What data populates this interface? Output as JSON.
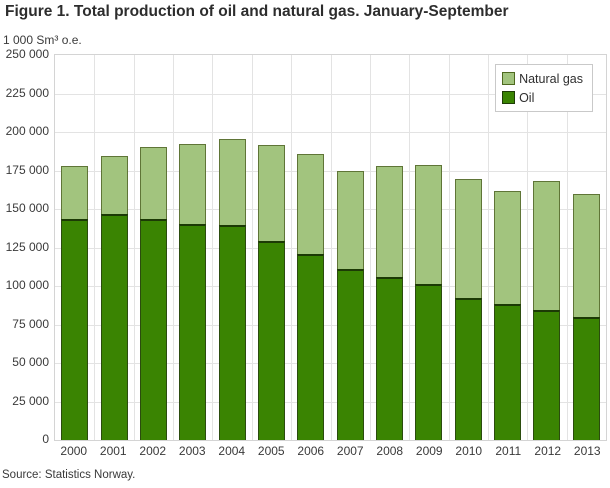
{
  "title": "Figure 1. Total production of oil and natural gas. January-September",
  "unit_label": "1 000 Sm³ o.e.",
  "source": "Source: Statistics Norway.",
  "legend": [
    {
      "label": "Natural gas",
      "color": "#a2c47e"
    },
    {
      "label": "Oil",
      "color": "#3a8402"
    }
  ],
  "colors": {
    "natural_gas_fill": "#a2c47e",
    "natural_gas_border": "#5f7537",
    "oil_fill": "#3a8402",
    "oil_border": "#2b4c0e",
    "gridline": "#e3e3e3",
    "plot_border": "#d4d4d4",
    "text": "#3a3a3a"
  },
  "chart_data": {
    "type": "bar",
    "stacked": true,
    "title": "Figure 1. Total production of oil and natural gas. January-September",
    "ylabel": "1 000 Sm³ o.e.",
    "xlabel": "",
    "ylim": [
      0,
      250000
    ],
    "ytick_step": 25000,
    "grid": true,
    "legend_position": "top-right",
    "categories": [
      "2000",
      "2001",
      "2002",
      "2003",
      "2004",
      "2005",
      "2006",
      "2007",
      "2008",
      "2009",
      "2010",
      "2011",
      "2012",
      "2013"
    ],
    "series": [
      {
        "name": "Oil",
        "color": "#3a8402",
        "values": [
          143500,
          146500,
          143500,
          140000,
          139500,
          129500,
          121000,
          111000,
          106000,
          101000,
          92500,
          88000,
          84500,
          80000
        ]
      },
      {
        "name": "Natural gas",
        "color": "#a2c47e",
        "values": [
          34500,
          38000,
          46500,
          52000,
          56000,
          62000,
          64500,
          63500,
          72000,
          77500,
          77000,
          73500,
          84000,
          79500
        ]
      }
    ],
    "totals": [
      178000,
      184500,
      190000,
      192000,
      195500,
      191500,
      185500,
      174500,
      178000,
      178500,
      169500,
      161500,
      168500,
      159500
    ]
  }
}
